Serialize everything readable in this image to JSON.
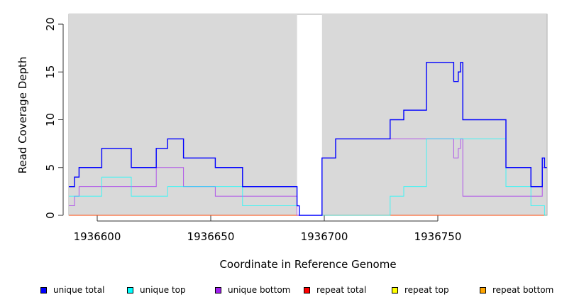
{
  "chart_data": {
    "type": "line",
    "step": true,
    "xlabel": "Coordinate in Reference Genome",
    "ylabel": "Read Coverage Depth",
    "xlim": [
      1936587.5,
      1936798
    ],
    "ylim": [
      0,
      21
    ],
    "xticks": [
      1936600,
      1936650,
      1936700,
      1936750
    ],
    "xtick_labels": [
      "1936600",
      "1936650",
      "1936700",
      "1936750"
    ],
    "yticks": [
      0,
      5,
      10,
      15,
      20
    ],
    "ytick_labels": [
      "0",
      "5",
      "10",
      "15",
      "20"
    ],
    "shaded_regions": [
      [
        1936587.5,
        1936688
      ],
      [
        1936699,
        1936798
      ]
    ],
    "x_end": 1936798,
    "legend_position": "bottom",
    "series": [
      {
        "name": "unique total",
        "color": "#0000ff",
        "steps": [
          [
            1936588,
            3
          ],
          [
            1936590,
            4
          ],
          [
            1936592,
            5
          ],
          [
            1936602,
            7
          ],
          [
            1936615,
            5
          ],
          [
            1936626,
            7
          ],
          [
            1936631,
            8
          ],
          [
            1936638,
            6
          ],
          [
            1936652,
            5
          ],
          [
            1936664,
            3
          ],
          [
            1936688,
            1
          ],
          [
            1936689,
            0
          ],
          [
            1936699,
            6
          ],
          [
            1936705,
            8
          ],
          [
            1936729,
            10
          ],
          [
            1936735,
            11
          ],
          [
            1936745,
            16
          ],
          [
            1936757,
            14
          ],
          [
            1936759,
            15
          ],
          [
            1936760,
            16
          ],
          [
            1936761,
            10
          ],
          [
            1936780,
            5
          ],
          [
            1936791,
            3
          ],
          [
            1936796,
            6
          ],
          [
            1936797,
            5
          ]
        ]
      },
      {
        "name": "unique top",
        "color": "#00ffff",
        "steps": [
          [
            1936588,
            2
          ],
          [
            1936602,
            4
          ],
          [
            1936615,
            2
          ],
          [
            1936631,
            3
          ],
          [
            1936664,
            1
          ],
          [
            1936689,
            0
          ],
          [
            1936729,
            2
          ],
          [
            1936735,
            3
          ],
          [
            1936745,
            8
          ],
          [
            1936780,
            3
          ],
          [
            1936791,
            1
          ],
          [
            1936797,
            0
          ]
        ]
      },
      {
        "name": "unique bottom",
        "color": "#a020f0",
        "steps": [
          [
            1936588,
            1
          ],
          [
            1936590,
            2
          ],
          [
            1936592,
            3
          ],
          [
            1936626,
            5
          ],
          [
            1936638,
            3
          ],
          [
            1936652,
            2
          ],
          [
            1936688,
            0
          ],
          [
            1936699,
            6
          ],
          [
            1936705,
            8
          ],
          [
            1936757,
            6
          ],
          [
            1936759,
            7
          ],
          [
            1936760,
            8
          ],
          [
            1936761,
            2
          ],
          [
            1936796,
            5
          ]
        ]
      },
      {
        "name": "repeat total",
        "color": "#ff0000",
        "steps": [
          [
            1936588,
            0
          ]
        ]
      },
      {
        "name": "repeat top",
        "color": "#ffff00",
        "steps": [
          [
            1936588,
            0
          ]
        ]
      },
      {
        "name": "repeat bottom",
        "color": "#ffa500",
        "steps": [
          [
            1936588,
            0
          ]
        ]
      }
    ]
  }
}
